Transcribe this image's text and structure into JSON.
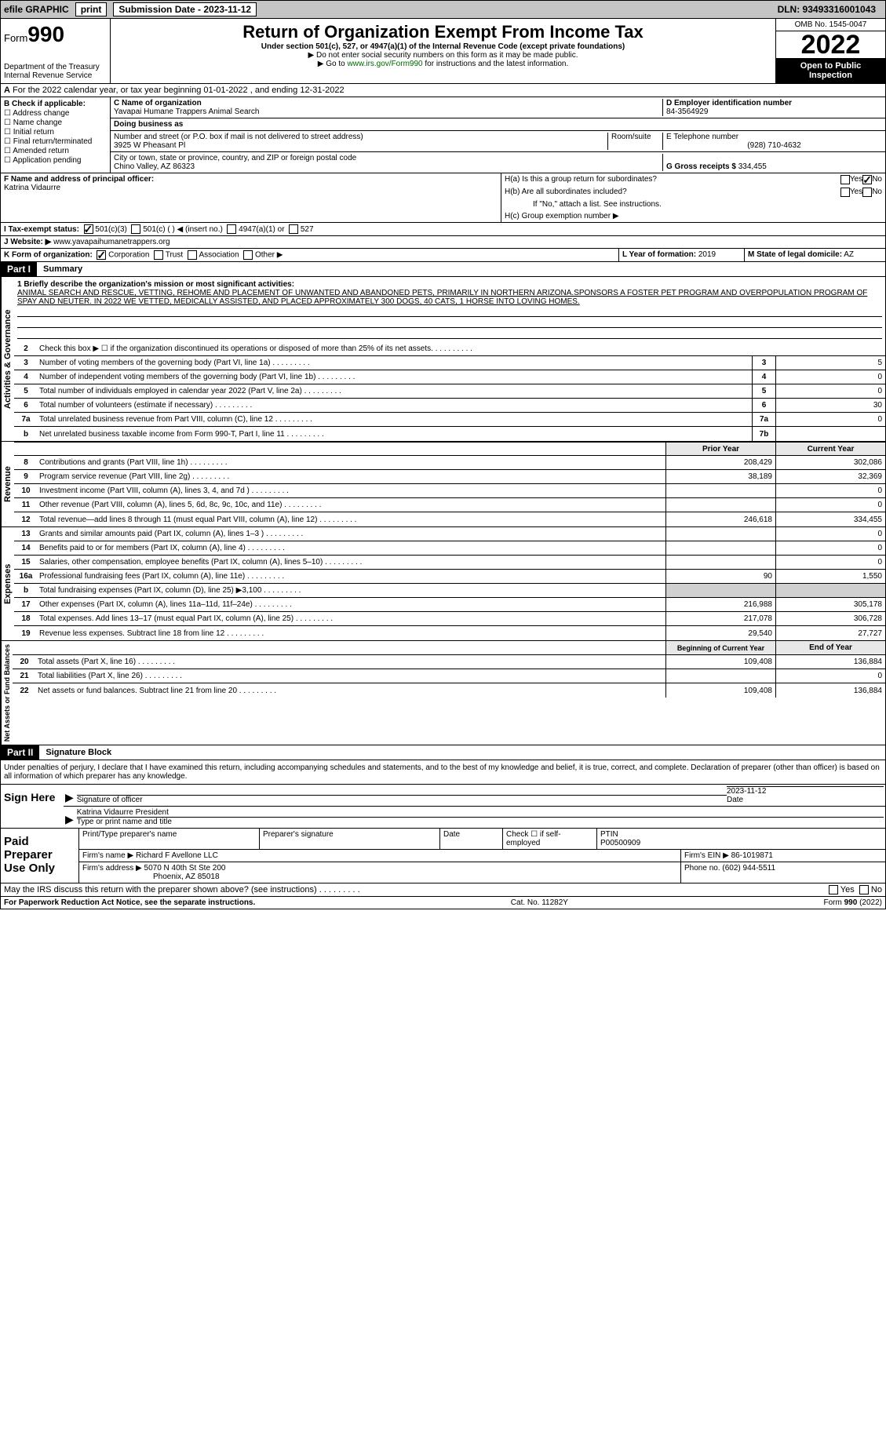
{
  "topbar": {
    "efile": "efile GRAPHIC",
    "print": "print",
    "submission": "Submission Date - 2023-11-12",
    "dln": "DLN: 93493316001043"
  },
  "header": {
    "form_label": "Form",
    "form_num": "990",
    "dept": "Department of the Treasury",
    "irs": "Internal Revenue Service",
    "title": "Return of Organization Exempt From Income Tax",
    "subtitle": "Under section 501(c), 527, or 4947(a)(1) of the Internal Revenue Code (except private foundations)",
    "note1": "▶ Do not enter social security numbers on this form as it may be made public.",
    "note2": "▶ Go to www.irs.gov/Form990 for instructions and the latest information.",
    "link": "www.irs.gov/Form990",
    "omb": "OMB No. 1545-0047",
    "year": "2022",
    "inspection": "Open to Public Inspection"
  },
  "section_a": "For the 2022 calendar year, or tax year beginning 01-01-2022     , and ending 12-31-2022",
  "check_b": {
    "title": "B Check if applicable:",
    "opts": [
      "Address change",
      "Name change",
      "Initial return",
      "Final return/terminated",
      "Amended return",
      "Application pending"
    ]
  },
  "col_c": {
    "name_label": "C Name of organization",
    "name": "Yavapai Humane Trappers Animal Search",
    "dba_label": "Doing business as",
    "dba": "",
    "street_label": "Number and street (or P.O. box if mail is not delivered to street address)",
    "room_label": "Room/suite",
    "street": "3925 W Pheasant Pl",
    "city_label": "City or town, state or province, country, and ZIP or foreign postal code",
    "city": "Chino Valley, AZ  86323"
  },
  "col_d": {
    "ein_label": "D Employer identification number",
    "ein": "84-3564929",
    "phone_label": "E Telephone number",
    "phone": "(928) 710-4632",
    "gross_label": "G Gross receipts $",
    "gross": "334,455"
  },
  "col_f": {
    "label": "F  Name and address of principal officer:",
    "name": "Katrina Vidaurre"
  },
  "col_h": {
    "ha": "H(a)  Is this a group return for subordinates?",
    "hb": "H(b)  Are all subordinates included?",
    "hb_note": "If \"No,\" attach a list. See instructions.",
    "hc": "H(c)  Group exemption number ▶",
    "yes": "Yes",
    "no": "No"
  },
  "row_i": {
    "label": "I    Tax-exempt status:",
    "opts": [
      "501(c)(3)",
      "501(c) (  ) ◀ (insert no.)",
      "4947(a)(1) or",
      "527"
    ]
  },
  "row_j": {
    "label": "J   Website: ▶",
    "value": "www.yavapaihumanetrappers.org"
  },
  "row_k": {
    "label": "K Form of organization:",
    "opts": [
      "Corporation",
      "Trust",
      "Association",
      "Other ▶"
    ],
    "l_label": "L Year of formation:",
    "l_val": "2019",
    "m_label": "M State of legal domicile:",
    "m_val": "AZ"
  },
  "part1": {
    "header": "Part I",
    "title": "Summary",
    "mission_label": "1  Briefly describe the organization's mission or most significant activities:",
    "mission": "ANIMAL SEARCH AND RESCUE, VETTING, REHOME AND PLACEMENT OF UNWANTED AND ABANDONED PETS, PRIMARILY IN NORTHERN ARIZONA.SPONSORS A FOSTER PET PROGRAM AND OVERPOPULATION PROGRAM OF SPAY AND NEUTER. IN 2022 WE VETTED, MEDICALLY ASSISTED, AND PLACED APPROXIMATELY 300 DOGS, 40 CATS, 1 HORSE INTO LOVING HOMES."
  },
  "governance": {
    "label": "Activities & Governance",
    "lines": [
      {
        "num": "2",
        "text": "Check this box ▶ ☐  if the organization discontinued its operations or disposed of more than 25% of its net assets."
      },
      {
        "num": "3",
        "text": "Number of voting members of the governing body (Part VI, line 1a)",
        "box": "3",
        "val": "5"
      },
      {
        "num": "4",
        "text": "Number of independent voting members of the governing body (Part VI, line 1b)",
        "box": "4",
        "val": "0"
      },
      {
        "num": "5",
        "text": "Total number of individuals employed in calendar year 2022 (Part V, line 2a)",
        "box": "5",
        "val": "0"
      },
      {
        "num": "6",
        "text": "Total number of volunteers (estimate if necessary)",
        "box": "6",
        "val": "30"
      },
      {
        "num": "7a",
        "text": "Total unrelated business revenue from Part VIII, column (C), line 12",
        "box": "7a",
        "val": "0"
      },
      {
        "num": "b",
        "text": "Net unrelated business taxable income from Form 990-T, Part I, line 11",
        "box": "7b",
        "val": ""
      }
    ]
  },
  "revenue": {
    "label": "Revenue",
    "prior_header": "Prior Year",
    "current_header": "Current Year",
    "lines": [
      {
        "num": "8",
        "text": "Contributions and grants (Part VIII, line 1h)",
        "prior": "208,429",
        "current": "302,086"
      },
      {
        "num": "9",
        "text": "Program service revenue (Part VIII, line 2g)",
        "prior": "38,189",
        "current": "32,369"
      },
      {
        "num": "10",
        "text": "Investment income (Part VIII, column (A), lines 3, 4, and 7d )",
        "prior": "",
        "current": "0"
      },
      {
        "num": "11",
        "text": "Other revenue (Part VIII, column (A), lines 5, 6d, 8c, 9c, 10c, and 11e)",
        "prior": "",
        "current": "0"
      },
      {
        "num": "12",
        "text": "Total revenue—add lines 8 through 11 (must equal Part VIII, column (A), line 12)",
        "prior": "246,618",
        "current": "334,455"
      }
    ]
  },
  "expenses": {
    "label": "Expenses",
    "lines": [
      {
        "num": "13",
        "text": "Grants and similar amounts paid (Part IX, column (A), lines 1–3 )",
        "prior": "",
        "current": "0"
      },
      {
        "num": "14",
        "text": "Benefits paid to or for members (Part IX, column (A), line 4)",
        "prior": "",
        "current": "0"
      },
      {
        "num": "15",
        "text": "Salaries, other compensation, employee benefits (Part IX, column (A), lines 5–10)",
        "prior": "",
        "current": "0"
      },
      {
        "num": "16a",
        "text": "Professional fundraising fees (Part IX, column (A), line 11e)",
        "prior": "90",
        "current": "1,550"
      },
      {
        "num": "b",
        "text": "Total fundraising expenses (Part IX, column (D), line 25) ▶3,100",
        "prior": "shaded",
        "current": "shaded"
      },
      {
        "num": "17",
        "text": "Other expenses (Part IX, column (A), lines 11a–11d, 11f–24e)",
        "prior": "216,988",
        "current": "305,178"
      },
      {
        "num": "18",
        "text": "Total expenses. Add lines 13–17 (must equal Part IX, column (A), line 25)",
        "prior": "217,078",
        "current": "306,728"
      },
      {
        "num": "19",
        "text": "Revenue less expenses. Subtract line 18 from line 12",
        "prior": "29,540",
        "current": "27,727"
      }
    ]
  },
  "netassets": {
    "label": "Net Assets or Fund Balances",
    "begin_header": "Beginning of Current Year",
    "end_header": "End of Year",
    "lines": [
      {
        "num": "20",
        "text": "Total assets (Part X, line 16)",
        "prior": "109,408",
        "current": "136,884"
      },
      {
        "num": "21",
        "text": "Total liabilities (Part X, line 26)",
        "prior": "",
        "current": "0"
      },
      {
        "num": "22",
        "text": "Net assets or fund balances. Subtract line 21 from line 20",
        "prior": "109,408",
        "current": "136,884"
      }
    ]
  },
  "part2": {
    "header": "Part II",
    "title": "Signature Block",
    "declare": "Under penalties of perjury, I declare that I have examined this return, including accompanying schedules and statements, and to the best of my knowledge and belief, it is true, correct, and complete. Declaration of preparer (other than officer) is based on all information of which preparer has any knowledge."
  },
  "sign": {
    "label": "Sign Here",
    "sig_label": "Signature of officer",
    "date_label": "Date",
    "date": "2023-11-12",
    "name": "Katrina Vidaurre  President",
    "type_label": "Type or print name and title"
  },
  "paid": {
    "label": "Paid Preparer Use Only",
    "h1": "Print/Type preparer's name",
    "h2": "Preparer's signature",
    "h3": "Date",
    "h4": "Check ☐ if self-employed",
    "h5": "PTIN",
    "ptin": "P00500909",
    "firm_label": "Firm's name     ▶",
    "firm": "Richard F Avellone LLC",
    "ein_label": "Firm's EIN ▶",
    "ein": "86-1019871",
    "addr_label": "Firm's address ▶",
    "addr1": "5070 N 40th St Ste 200",
    "addr2": "Phoenix, AZ  85018",
    "phone_label": "Phone no.",
    "phone": "(602) 944-5511",
    "discuss": "May the IRS discuss this return with the preparer shown above? (see instructions)"
  },
  "footer": {
    "left": "For Paperwork Reduction Act Notice, see the separate instructions.",
    "mid": "Cat. No. 11282Y",
    "right": "Form 990 (2022)"
  }
}
